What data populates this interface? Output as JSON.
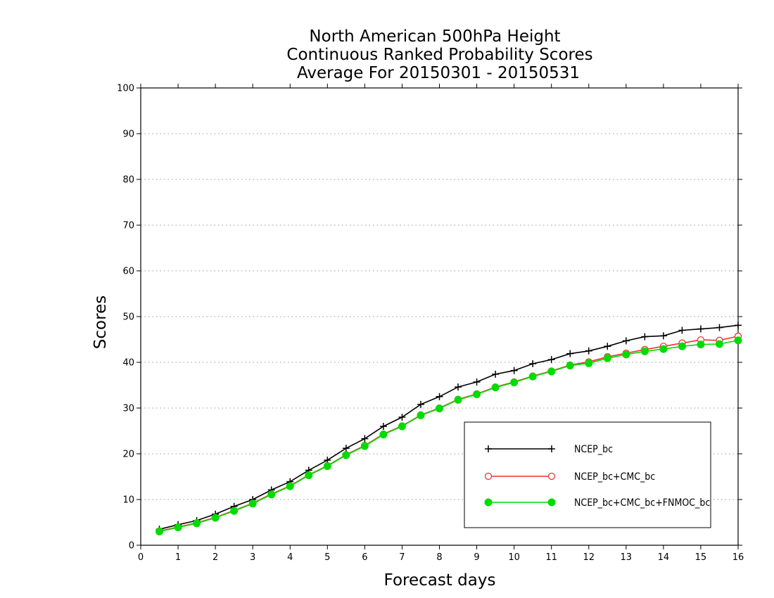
{
  "chart_data": {
    "type": "line",
    "title": [
      "North American 500hPa Height",
      "Continuous Ranked Probability Scores",
      "Average For 20150301 - 20150531"
    ],
    "xlabel": "Forecast days",
    "ylabel": "Scores",
    "xlim": [
      0,
      16
    ],
    "ylim": [
      0,
      100
    ],
    "xticks": [
      0,
      1,
      2,
      3,
      4,
      5,
      6,
      7,
      8,
      9,
      10,
      11,
      12,
      13,
      14,
      15,
      16
    ],
    "yticks": [
      0,
      10,
      20,
      30,
      40,
      50,
      60,
      70,
      80,
      90,
      100
    ],
    "grid": "horizontal dotted",
    "legend_position": "bottom-right",
    "x": [
      0.5,
      1.0,
      1.5,
      2.0,
      2.5,
      3.0,
      3.5,
      4.0,
      4.5,
      5.0,
      5.5,
      6.0,
      6.5,
      7.0,
      7.5,
      8.0,
      8.5,
      9.0,
      9.5,
      10.0,
      10.5,
      11.0,
      11.5,
      12.0,
      12.5,
      13.0,
      13.5,
      14.0,
      14.5,
      15.0,
      15.5,
      16.0
    ],
    "series": [
      {
        "name": "NCEP_bc",
        "color": "#000000",
        "marker": "plus",
        "values": [
          3.5,
          4.5,
          5.4,
          6.8,
          8.5,
          10.0,
          12.1,
          13.9,
          16.4,
          18.6,
          21.2,
          23.3,
          26.0,
          28.0,
          30.8,
          32.5,
          34.6,
          35.7,
          37.4,
          38.2,
          39.7,
          40.6,
          41.9,
          42.5,
          43.5,
          44.7,
          45.6,
          45.8,
          47.0,
          47.3,
          47.6,
          48.1
        ]
      },
      {
        "name": "NCEP_bc+CMC_bc",
        "color": "#f03232",
        "marker": "open-circle",
        "values": [
          3.1,
          4.0,
          4.9,
          6.1,
          7.6,
          9.2,
          11.2,
          13.0,
          15.4,
          17.4,
          19.8,
          21.8,
          24.3,
          26.1,
          28.5,
          30.0,
          31.9,
          33.1,
          34.6,
          35.7,
          37.0,
          38.1,
          39.4,
          40.1,
          41.2,
          42.0,
          42.8,
          43.5,
          44.2,
          44.9,
          44.8,
          45.7
        ]
      },
      {
        "name": "NCEP_bc+CMC_bc+FNMOC_bc",
        "color": "#00dc00",
        "marker": "filled-circle",
        "values": [
          3.0,
          3.9,
          4.8,
          6.0,
          7.5,
          9.1,
          11.1,
          12.9,
          15.3,
          17.3,
          19.7,
          21.7,
          24.2,
          26.0,
          28.4,
          29.9,
          31.8,
          33.0,
          34.5,
          35.6,
          36.9,
          38.0,
          39.3,
          39.8,
          40.9,
          41.7,
          42.4,
          42.9,
          43.5,
          43.9,
          44.0,
          44.8
        ]
      }
    ]
  }
}
